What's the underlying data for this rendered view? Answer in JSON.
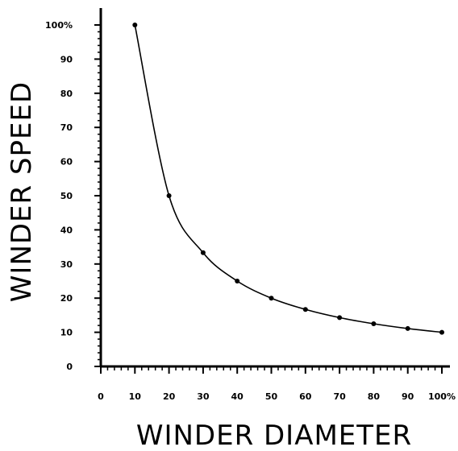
{
  "chart_data": {
    "type": "line",
    "title": "",
    "xlabel": "WINDER  DIAMETER",
    "ylabel": "WINDER  SPEED",
    "xlim": [
      0,
      100
    ],
    "ylim": [
      0,
      100
    ],
    "x_ticks": [
      0,
      10,
      20,
      30,
      40,
      50,
      60,
      70,
      80,
      90,
      100
    ],
    "x_tick_labels": [
      "0",
      "10",
      "20",
      "30",
      "40",
      "50",
      "60",
      "70",
      "80",
      "90",
      "100%"
    ],
    "y_ticks": [
      0,
      10,
      20,
      30,
      40,
      50,
      60,
      70,
      80,
      90,
      100
    ],
    "y_tick_labels": [
      "0",
      "10",
      "20",
      "30",
      "40",
      "50",
      "60",
      "70",
      "80",
      "90",
      "100%"
    ],
    "grid": false,
    "series": [
      {
        "x": [
          10,
          20,
          30,
          40,
          50,
          60,
          70,
          80,
          90,
          100
        ],
        "y": [
          100,
          50,
          33.3,
          25,
          20,
          16.7,
          14.3,
          12.5,
          11.1,
          10
        ]
      }
    ]
  }
}
